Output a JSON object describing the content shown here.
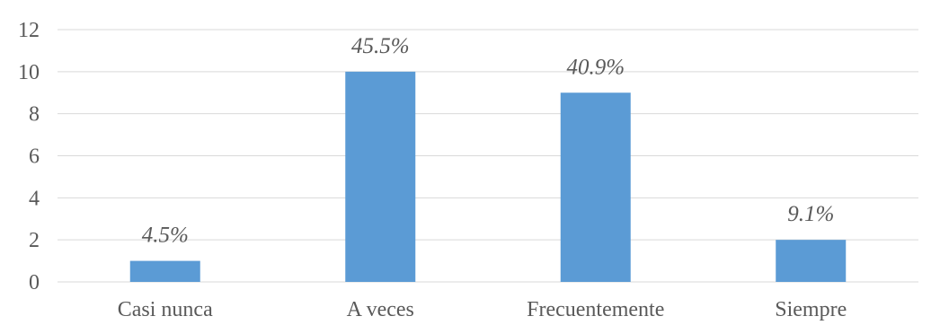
{
  "chart_data": {
    "type": "bar",
    "categories": [
      "Casi nunca",
      "A veces",
      "Frecuentemente",
      "Siempre"
    ],
    "values": [
      1,
      10,
      9,
      2
    ],
    "data_labels": [
      "4.5%",
      "45.5%",
      "40.9%",
      "9.1%"
    ],
    "ylim": [
      0,
      12
    ],
    "yticks": [
      "0",
      "2",
      "4",
      "6",
      "8",
      "10",
      "12"
    ],
    "grid": true,
    "bar_color": "#5b9bd5",
    "title": "",
    "xlabel": "",
    "ylabel": ""
  }
}
